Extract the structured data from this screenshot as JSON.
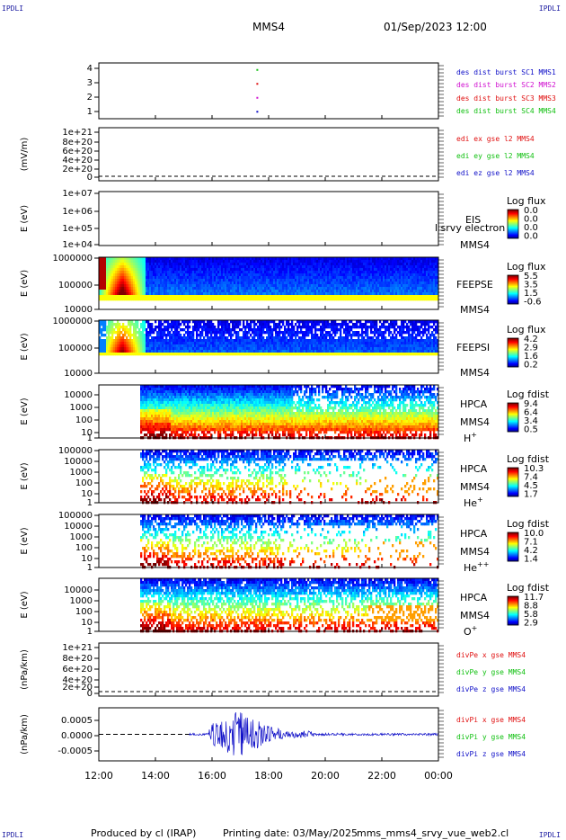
{
  "corners": {
    "tl": "IPDLI",
    "tr": "IPDLI",
    "bl": "IPDLI",
    "br": "IPDLI"
  },
  "header": {
    "title": "MMS4",
    "datetime": "01/Sep/2023 12:00"
  },
  "footer": {
    "produced_by": "Produced by cl (IRAP)",
    "printing_date": "Printing date: 03/May/2025",
    "script": "mms_mms4_srvy_vue_web2.cl"
  },
  "time_axis": {
    "ticks": [
      "12:00",
      "14:00",
      "16:00",
      "18:00",
      "20:00",
      "22:00",
      "00:00"
    ],
    "start_hour": 12,
    "end_hour": 24
  },
  "colors": {
    "blue": "#1010c8",
    "magenta": "#d010d0",
    "red": "#e01010",
    "green": "#10c010"
  },
  "chart_data": [
    {
      "type": "scatter",
      "id": "burst",
      "ylabel": "",
      "ytick_labels": [
        "4",
        "3",
        "2",
        "1"
      ],
      "ylim": [
        0.5,
        4.5
      ],
      "points": [
        {
          "x": 17.6,
          "y": 4,
          "color": "green"
        },
        {
          "x": 17.6,
          "y": 3,
          "color": "red"
        },
        {
          "x": 17.6,
          "y": 2,
          "color": "magenta"
        },
        {
          "x": 17.6,
          "y": 1,
          "color": "blue"
        }
      ],
      "legend": [
        {
          "text": "des dist burst SC1 MMS1",
          "color": "blue"
        },
        {
          "text": "des dist burst SC2 MMS2",
          "color": "magenta"
        },
        {
          "text": "des dist burst SC3 MMS3",
          "color": "red"
        },
        {
          "text": "des dist burst SC4 MMS4",
          "color": "green"
        }
      ]
    },
    {
      "type": "line",
      "id": "edi",
      "ylabel": "(mV/m)",
      "ytick_labels": [
        "1e+21",
        "8e+20",
        "6e+20",
        "4e+20",
        "2e+20",
        "0"
      ],
      "ylim": [
        0,
        1e+21
      ],
      "legend": [
        {
          "text": "edi ex gse l2 MMS4",
          "color": "red"
        },
        {
          "text": "edi ey gse l2 MMS4",
          "color": "green"
        },
        {
          "text": "edi ez gse l2 MMS4",
          "color": "blue"
        }
      ]
    },
    {
      "type": "heatmap",
      "id": "eis",
      "ylabel": "E (eV)",
      "ytick_labels": [
        "1e+07",
        "1e+06",
        "1e+05",
        "1e+04"
      ],
      "side_labels": [
        "EIS",
        "MMS4"
      ],
      "overlay_label": "l srvy electron to",
      "cbar_title": "Log flux",
      "cbar_ticks": [
        "0.0",
        "0.0",
        "0.0",
        "0.0"
      ]
    },
    {
      "type": "heatmap",
      "id": "feepse",
      "ylabel": "E (eV)",
      "ytick_labels": [
        "1000000",
        "100000",
        "10000"
      ],
      "side_labels": [
        "FEEPSE",
        "MMS4"
      ],
      "cbar_title": "Log flux",
      "cbar_ticks": [
        "5.5",
        "3.5",
        "1.5",
        "-0.6"
      ]
    },
    {
      "type": "heatmap",
      "id": "feepsi",
      "ylabel": "E (eV)",
      "ytick_labels": [
        "1000000",
        "100000",
        "10000"
      ],
      "side_labels": [
        "FEEPSI",
        "MMS4"
      ],
      "cbar_title": "Log flux",
      "cbar_ticks": [
        "4.2",
        "2.9",
        "1.6",
        "0.2"
      ]
    },
    {
      "type": "heatmap",
      "id": "hpca_h",
      "ylabel": "E (eV)",
      "ytick_labels": [
        "10000",
        "1000",
        "100",
        "10",
        "1"
      ],
      "side_labels": [
        "HPCA",
        "MMS4"
      ],
      "species": "H",
      "species_sup": "+",
      "cbar_title": "Log fdist",
      "cbar_ticks": [
        "9.4",
        "6.4",
        "3.4",
        "0.5"
      ]
    },
    {
      "type": "heatmap",
      "id": "hpca_he1",
      "ylabel": "E (eV)",
      "ytick_labels": [
        "100000",
        "10000",
        "1000",
        "100",
        "10",
        "1"
      ],
      "side_labels": [
        "HPCA",
        "MMS4"
      ],
      "species": "He",
      "species_sup": "+",
      "cbar_title": "Log fdist",
      "cbar_ticks": [
        "10.3",
        "7.4",
        "4.5",
        "1.7"
      ]
    },
    {
      "type": "heatmap",
      "id": "hpca_he2",
      "ylabel": "E (eV)",
      "ytick_labels": [
        "100000",
        "10000",
        "1000",
        "100",
        "10",
        "1"
      ],
      "side_labels": [
        "HPCA",
        "MMS4"
      ],
      "species": "He",
      "species_sup": "++",
      "cbar_title": "Log fdist",
      "cbar_ticks": [
        "10.0",
        "7.1",
        "4.2",
        "1.4"
      ]
    },
    {
      "type": "heatmap",
      "id": "hpca_o",
      "ylabel": "E (eV)",
      "ytick_labels": [
        "10000",
        "1000",
        "100",
        "10",
        "1"
      ],
      "side_labels": [
        "HPCA",
        "MMS4"
      ],
      "species": "O",
      "species_sup": "+",
      "cbar_title": "Log fdist",
      "cbar_ticks": [
        "11.7",
        "8.8",
        "5.8",
        "2.9"
      ]
    },
    {
      "type": "line",
      "id": "divpe",
      "ylabel": "(nPa/km)",
      "ytick_labels": [
        "1e+21",
        "8e+20",
        "6e+20",
        "4e+20",
        "2e+20",
        "0"
      ],
      "ylim": [
        0,
        1e+21
      ],
      "legend": [
        {
          "text": "divPe x gse MMS4",
          "color": "red"
        },
        {
          "text": "divPe y gse MMS4",
          "color": "green"
        },
        {
          "text": "divPe z gse MMS4",
          "color": "blue"
        }
      ]
    },
    {
      "type": "line",
      "id": "divpi",
      "ylabel": "(nPa/km)",
      "ytick_labels": [
        "0.0005",
        "0.0000",
        "-0.0005"
      ],
      "ylim": [
        -0.0009,
        0.0009
      ],
      "legend": [
        {
          "text": "divPi x gse MMS4",
          "color": "red"
        },
        {
          "text": "divPi y gse MMS4",
          "color": "green"
        },
        {
          "text": "divPi z gse MMS4",
          "color": "blue"
        }
      ]
    }
  ]
}
